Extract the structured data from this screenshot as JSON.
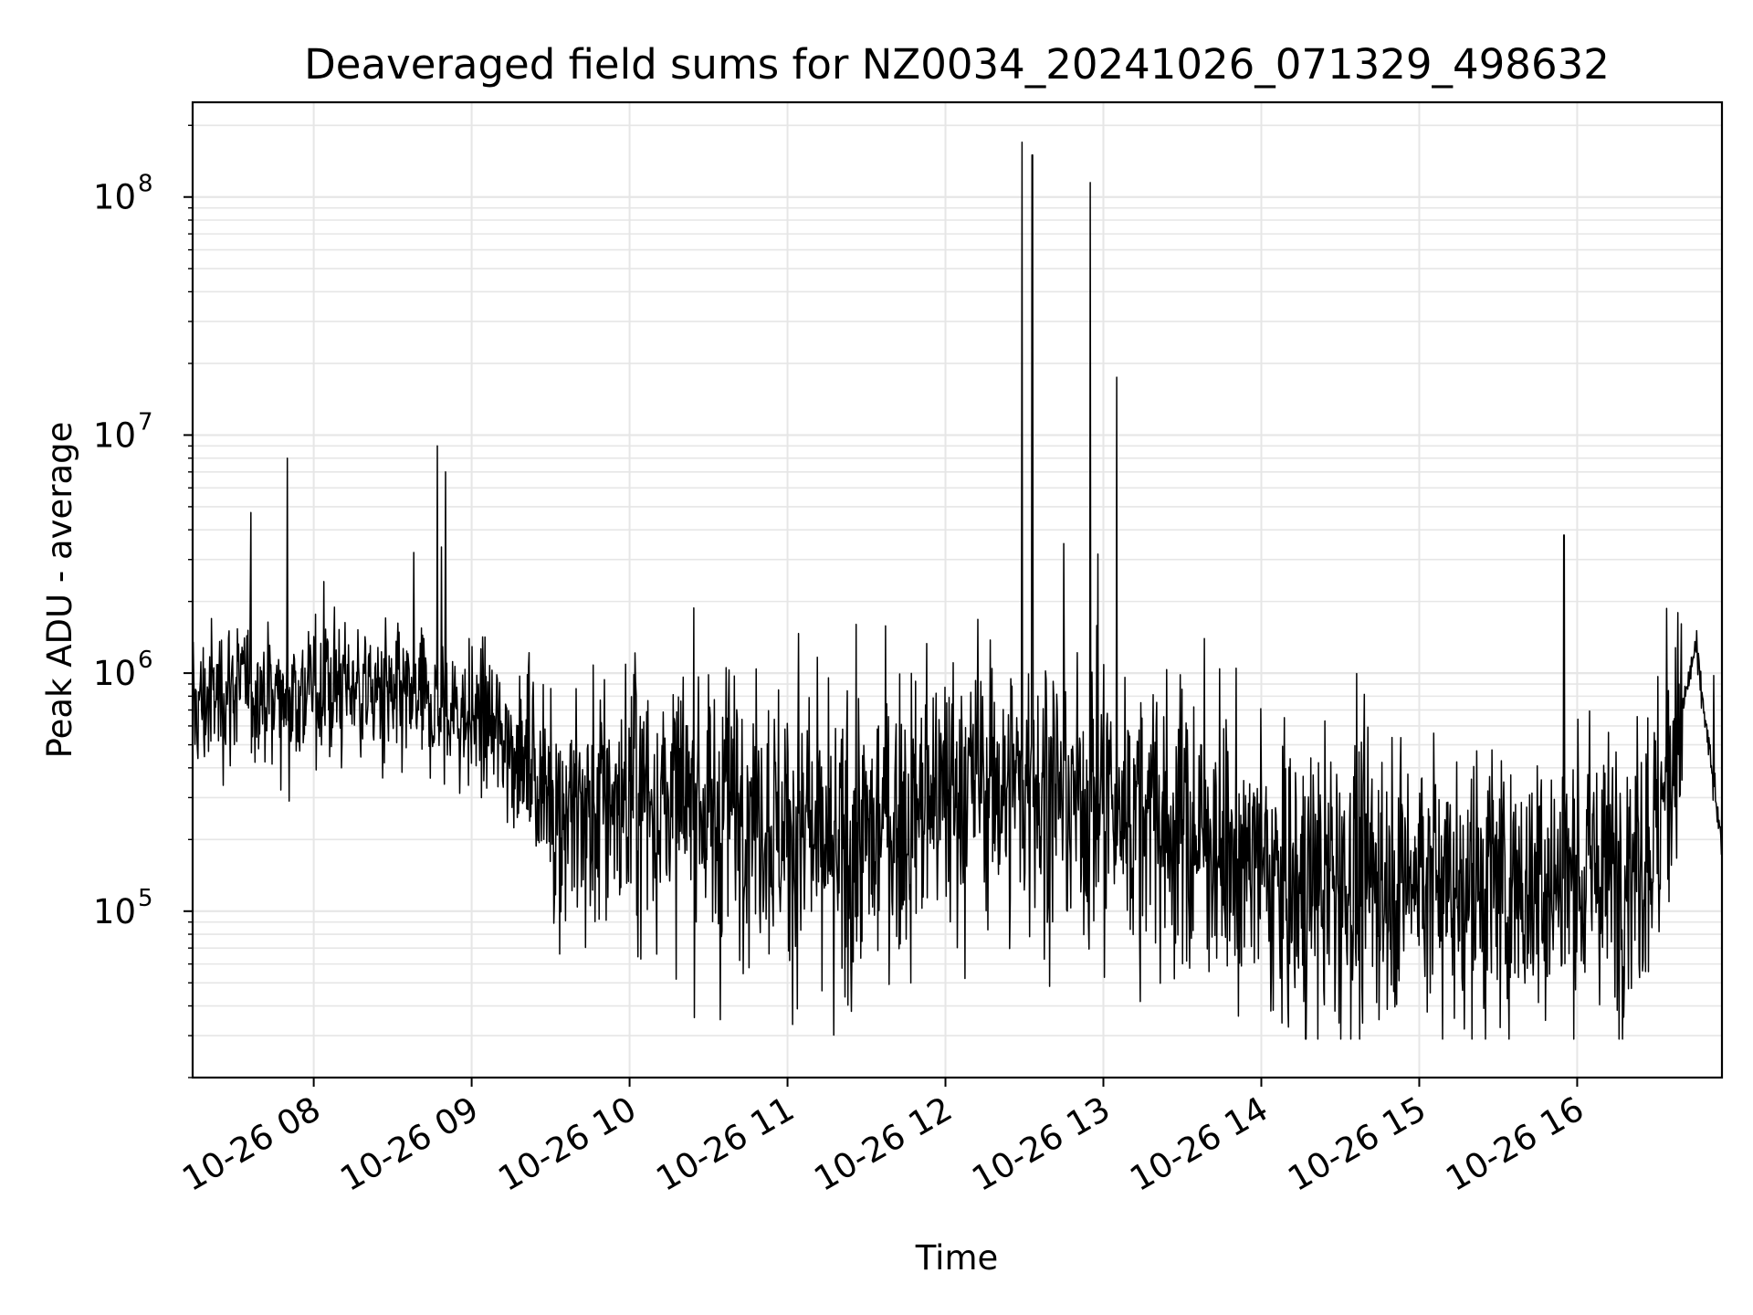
{
  "chart_data": {
    "type": "line",
    "title": "Deaveraged field sums for NZ0034_20241026_071329_498632",
    "xlabel": "Time",
    "ylabel": "Peak ADU - average",
    "y_scale": "log",
    "ylim": [
      20000,
      250000000
    ],
    "xlim": [
      "10-26 07:14",
      "10-26 16:55"
    ],
    "grid": true,
    "x_ticks": [
      "10-26 08",
      "10-26 09",
      "10-26 10",
      "10-26 11",
      "10-26 12",
      "10-26 13",
      "10-26 14",
      "10-26 15",
      "10-26 16"
    ],
    "y_ticks": [
      {
        "base": "10",
        "exp": "5",
        "value": 100000
      },
      {
        "base": "10",
        "exp": "6",
        "value": 1000000
      },
      {
        "base": "10",
        "exp": "7",
        "value": 10000000
      },
      {
        "base": "10",
        "exp": "8",
        "value": 100000000
      }
    ],
    "line_color": "#000000",
    "series": [
      {
        "x": [
          "10-26 07:14",
          "10-26 07:30",
          "10-26 07:45",
          "10-26 08:00",
          "10-26 08:15",
          "10-26 08:30",
          "10-26 08:45",
          "10-26 09:00",
          "10-26 09:15",
          "10-26 09:30",
          "10-26 09:45",
          "10-26 10:00",
          "10-26 10:15",
          "10-26 10:30",
          "10-26 10:45",
          "10-26 11:00",
          "10-26 11:15",
          "10-26 11:30",
          "10-26 11:45",
          "10-26 12:00",
          "10-26 12:15",
          "10-26 12:30",
          "10-26 12:45",
          "10-26 13:00",
          "10-26 13:15",
          "10-26 13:30",
          "10-26 13:45",
          "10-26 14:00",
          "10-26 14:15",
          "10-26 14:30",
          "10-26 14:45",
          "10-26 15:00",
          "10-26 15:15",
          "10-26 15:30",
          "10-26 15:45",
          "10-26 16:00",
          "10-26 16:15",
          "10-26 16:30",
          "10-26 16:45",
          "10-26 16:55"
        ],
        "values": [
          700000,
          900000,
          800000,
          850000,
          900000,
          750000,
          700000,
          650000,
          500000,
          300000,
          250000,
          300000,
          280000,
          250000,
          300000,
          220000,
          150000,
          200000,
          250000,
          300000,
          350000,
          320000,
          300000,
          280000,
          250000,
          220000,
          180000,
          150000,
          120000,
          130000,
          150000,
          140000,
          130000,
          120000,
          130000,
          140000,
          150000,
          200000,
          1300000,
          180000
        ]
      }
    ],
    "spikes": [
      {
        "x": "10-26 07:50",
        "value": 8000000
      },
      {
        "x": "10-26 08:47",
        "value": 9000000
      },
      {
        "x": "10-26 08:50",
        "value": 7000000
      },
      {
        "x": "10-26 12:29",
        "value": 170000000
      },
      {
        "x": "10-26 12:33",
        "value": 150000000
      },
      {
        "x": "10-26 12:45",
        "value": 3500000
      },
      {
        "x": "10-26 12:55",
        "value": 115000000
      },
      {
        "x": "10-26 13:05",
        "value": 17500000
      },
      {
        "x": "10-26 15:55",
        "value": 3800000
      }
    ]
  }
}
